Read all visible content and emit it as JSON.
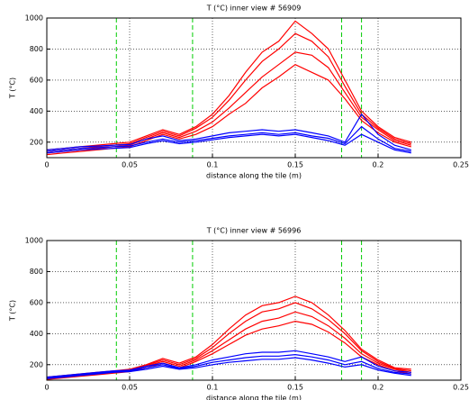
{
  "chart_data": [
    {
      "type": "line",
      "title": "T (°C) inner view # 56909",
      "xlabel": "distance along the tile (m)",
      "ylabel": "T (°C)",
      "x": [
        0,
        0.01,
        0.02,
        0.03,
        0.04,
        0.05,
        0.06,
        0.07,
        0.08,
        0.09,
        0.1,
        0.11,
        0.12,
        0.13,
        0.14,
        0.15,
        0.16,
        0.17,
        0.18,
        0.19,
        0.2,
        0.21,
        0.22
      ],
      "series": [
        {
          "color": "#ff0000",
          "values": [
            150,
            160,
            170,
            180,
            190,
            200,
            240,
            280,
            250,
            300,
            380,
            500,
            650,
            780,
            850,
            980,
            900,
            800,
            600,
            400,
            300,
            230,
            200
          ]
        },
        {
          "color": "#ff0000",
          "values": [
            140,
            150,
            160,
            170,
            180,
            190,
            230,
            270,
            240,
            290,
            360,
            470,
            600,
            720,
            800,
            900,
            850,
            750,
            560,
            380,
            290,
            220,
            190
          ]
        },
        {
          "color": "#ff0000",
          "values": [
            130,
            140,
            150,
            160,
            170,
            180,
            220,
            260,
            230,
            270,
            330,
            420,
            520,
            620,
            700,
            780,
            760,
            680,
            520,
            360,
            280,
            210,
            180
          ]
        },
        {
          "color": "#ff0000",
          "values": [
            120,
            130,
            140,
            150,
            160,
            170,
            210,
            250,
            220,
            250,
            300,
            380,
            450,
            550,
            620,
            700,
            650,
            600,
            480,
            340,
            260,
            200,
            170
          ]
        },
        {
          "color": "#0000ff",
          "values": [
            150,
            160,
            170,
            175,
            180,
            185,
            220,
            240,
            210,
            220,
            240,
            260,
            270,
            280,
            270,
            280,
            260,
            240,
            200,
            380,
            250,
            180,
            150
          ]
        },
        {
          "color": "#0000ff",
          "values": [
            140,
            150,
            160,
            165,
            170,
            175,
            200,
            220,
            200,
            210,
            225,
            240,
            250,
            260,
            250,
            260,
            240,
            225,
            190,
            300,
            220,
            160,
            140
          ]
        },
        {
          "color": "#0000ff",
          "values": [
            130,
            140,
            150,
            155,
            160,
            165,
            190,
            210,
            190,
            200,
            215,
            230,
            240,
            250,
            240,
            250,
            230,
            210,
            180,
            250,
            200,
            150,
            130
          ]
        }
      ],
      "vlines": [
        0.042,
        0.088,
        0.178,
        0.19
      ],
      "vline_color": "#00cc00",
      "xlim": [
        0,
        0.25
      ],
      "xticks": [
        0,
        0.05,
        0.1,
        0.15,
        0.2,
        0.25
      ],
      "ylim": [
        100,
        1000
      ],
      "yticks": [
        200,
        400,
        600,
        800,
        1000
      ],
      "grid": true
    },
    {
      "type": "line",
      "title": "T (°C) inner view # 56996",
      "xlabel": "distance along the tile (m)",
      "ylabel": "T (°C)",
      "x": [
        0,
        0.01,
        0.02,
        0.03,
        0.04,
        0.05,
        0.06,
        0.07,
        0.08,
        0.09,
        0.1,
        0.11,
        0.12,
        0.13,
        0.14,
        0.15,
        0.16,
        0.17,
        0.18,
        0.19,
        0.2,
        0.21,
        0.22
      ],
      "series": [
        {
          "color": "#ff0000",
          "values": [
            120,
            130,
            140,
            150,
            160,
            170,
            200,
            240,
            210,
            250,
            330,
            430,
            520,
            580,
            600,
            640,
            600,
            520,
            420,
            300,
            230,
            180,
            170
          ]
        },
        {
          "color": "#ff0000",
          "values": [
            115,
            125,
            135,
            145,
            155,
            165,
            195,
            230,
            200,
            240,
            310,
            400,
            480,
            540,
            560,
            600,
            560,
            490,
            400,
            290,
            220,
            175,
            160
          ]
        },
        {
          "color": "#ff0000",
          "values": [
            110,
            120,
            130,
            140,
            150,
            160,
            190,
            220,
            190,
            230,
            290,
            360,
            430,
            480,
            500,
            540,
            510,
            450,
            370,
            270,
            210,
            170,
            150
          ]
        },
        {
          "color": "#ff0000",
          "values": [
            105,
            115,
            125,
            135,
            145,
            155,
            180,
            210,
            180,
            220,
            270,
            330,
            390,
            430,
            450,
            480,
            460,
            410,
            340,
            250,
            200,
            160,
            140
          ]
        },
        {
          "color": "#0000ff",
          "values": [
            120,
            130,
            140,
            150,
            160,
            165,
            190,
            210,
            180,
            200,
            230,
            250,
            270,
            280,
            280,
            290,
            270,
            250,
            220,
            250,
            190,
            160,
            150
          ]
        },
        {
          "color": "#0000ff",
          "values": [
            115,
            125,
            135,
            145,
            155,
            160,
            180,
            200,
            175,
            190,
            215,
            230,
            245,
            255,
            255,
            265,
            250,
            230,
            200,
            220,
            175,
            150,
            140
          ]
        },
        {
          "color": "#0000ff",
          "values": [
            110,
            120,
            130,
            140,
            150,
            155,
            170,
            190,
            170,
            180,
            200,
            215,
            225,
            235,
            235,
            245,
            230,
            210,
            185,
            200,
            165,
            145,
            130
          ]
        }
      ],
      "vlines": [
        0.042,
        0.088,
        0.178,
        0.19
      ],
      "vline_color": "#00cc00",
      "xlim": [
        0,
        0.25
      ],
      "xticks": [
        0,
        0.05,
        0.1,
        0.15,
        0.2,
        0.25
      ],
      "ylim": [
        100,
        1000
      ],
      "yticks": [
        200,
        400,
        600,
        800,
        1000
      ],
      "grid": true
    }
  ]
}
